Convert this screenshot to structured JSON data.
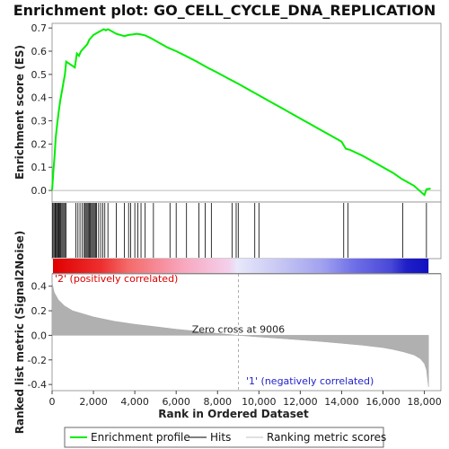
{
  "chart_data": {
    "type": "line",
    "title": "Enrichment plot: GO_CELL_CYCLE_DNA_REPLICATION",
    "xlabel": "Rank in Ordered Dataset",
    "ylabel_top": "Enrichment score (ES)",
    "ylabel_bottom": "Ranked list metric (Signal2Noise)",
    "xlim": [
      0,
      18800
    ],
    "x_ticks": [
      "0",
      "2,000",
      "4,000",
      "6,000",
      "8,000",
      "10,000",
      "12,000",
      "14,000",
      "16,000",
      "18,000"
    ],
    "x_tick_values": [
      0,
      2000,
      4000,
      6000,
      8000,
      10000,
      12000,
      14000,
      16000,
      18000
    ],
    "es_ylim": [
      -0.05,
      0.72
    ],
    "es_ticks": [
      "0.0",
      "0.1",
      "0.2",
      "0.3",
      "0.4",
      "0.5",
      "0.6",
      "0.7"
    ],
    "es_tick_values": [
      0.0,
      0.1,
      0.2,
      0.3,
      0.4,
      0.5,
      0.6,
      0.7
    ],
    "metric_ylim": [
      -0.45,
      0.5
    ],
    "metric_ticks": [
      "0.4",
      "0.2",
      "0.0",
      "-0.2",
      "-0.4"
    ],
    "metric_tick_values": [
      0.4,
      0.2,
      0.0,
      -0.2,
      -0.4
    ],
    "series": [
      {
        "name": "Enrichment profile",
        "x": [
          0,
          60,
          120,
          180,
          250,
          320,
          400,
          480,
          560,
          620,
          680,
          1100,
          1200,
          1300,
          1400,
          1500,
          1600,
          1700,
          1800,
          1900,
          2000,
          2100,
          2200,
          2300,
          2400,
          2500,
          2600,
          2700,
          2900,
          3100,
          3300,
          3500,
          3700,
          3900,
          4100,
          4300,
          4500,
          4800,
          5200,
          5600,
          6000,
          6500,
          7000,
          7500,
          8000,
          8500,
          9000,
          9500,
          10000,
          10500,
          11000,
          11500,
          12000,
          12500,
          13000,
          13500,
          14000,
          14200,
          14400,
          15000,
          15500,
          16000,
          16500,
          16900,
          17000,
          17500,
          18000,
          18100,
          18300
        ],
        "y": [
          0.0,
          0.08,
          0.15,
          0.23,
          0.29,
          0.34,
          0.39,
          0.43,
          0.47,
          0.5,
          0.555,
          0.53,
          0.59,
          0.58,
          0.6,
          0.61,
          0.62,
          0.63,
          0.65,
          0.66,
          0.67,
          0.675,
          0.68,
          0.685,
          0.69,
          0.695,
          0.69,
          0.695,
          0.685,
          0.675,
          0.67,
          0.665,
          0.67,
          0.672,
          0.675,
          0.672,
          0.668,
          0.655,
          0.635,
          0.615,
          0.6,
          0.578,
          0.555,
          0.53,
          0.507,
          0.483,
          0.46,
          0.435,
          0.41,
          0.385,
          0.36,
          0.335,
          0.31,
          0.285,
          0.26,
          0.235,
          0.21,
          0.18,
          0.175,
          0.15,
          0.125,
          0.1,
          0.075,
          0.05,
          0.045,
          0.02,
          -0.02,
          0.005,
          0.008
        ]
      }
    ],
    "hits": [
      30,
      80,
      130,
      170,
      210,
      260,
      300,
      340,
      380,
      420,
      470,
      520,
      570,
      620,
      680,
      1150,
      1250,
      1350,
      1450,
      1550,
      1600,
      1650,
      1700,
      1750,
      1800,
      1850,
      1900,
      1950,
      2000,
      2050,
      2100,
      2150,
      2250,
      2350,
      2450,
      2550,
      2700,
      3100,
      3500,
      3700,
      3800,
      4000,
      4150,
      4300,
      4500,
      4900,
      5700,
      6000,
      6500,
      7100,
      7400,
      7700,
      8700,
      8900,
      9000,
      9800,
      10000,
      14100,
      14300,
      16950,
      18100
    ],
    "metric_curve": {
      "x": [
        0,
        100,
        300,
        600,
        1000,
        2000,
        3000,
        4000,
        5000,
        6000,
        7000,
        8000,
        9006,
        10000,
        11000,
        12000,
        13000,
        14000,
        15000,
        16000,
        16500,
        17000,
        17500,
        17800,
        18000,
        18100,
        18200
      ],
      "y": [
        0.43,
        0.35,
        0.29,
        0.24,
        0.2,
        0.15,
        0.115,
        0.09,
        0.07,
        0.05,
        0.033,
        0.016,
        0.0,
        -0.013,
        -0.025,
        -0.037,
        -0.05,
        -0.065,
        -0.08,
        -0.1,
        -0.115,
        -0.135,
        -0.16,
        -0.19,
        -0.23,
        -0.28,
        -0.42
      ]
    },
    "zero_cross_label": "Zero cross at 9006",
    "zero_cross_x": 9006,
    "pos_label": "'2' (positively correlated)",
    "neg_label": "'1' (negatively correlated)",
    "legend": {
      "placement": "bottom",
      "items": [
        {
          "label": "Enrichment profile",
          "color": "#00ee00"
        },
        {
          "label": "Hits",
          "color": "#000000"
        },
        {
          "label": "Ranking metric scores",
          "color": "#c0c0c0"
        }
      ]
    },
    "colors": {
      "profile": "#00ee00",
      "metric_fill": "#b0b0b0",
      "positive": "#ff0000",
      "negative": "#0000cc"
    }
  }
}
